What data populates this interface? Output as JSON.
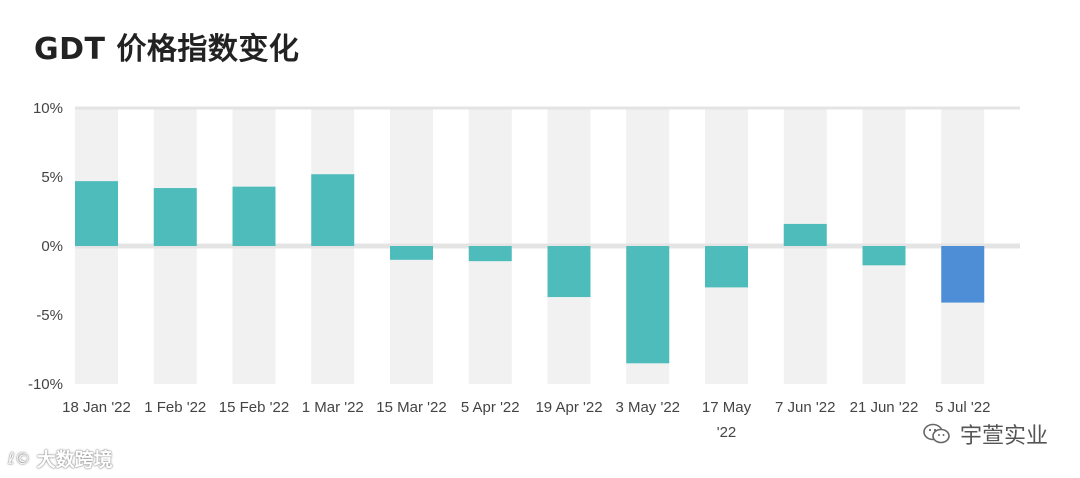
{
  "title": "GDT 价格指数变化",
  "chart_data": {
    "type": "bar",
    "title": "GDT 价格指数变化",
    "xlabel": "",
    "ylabel": "",
    "ylim": [
      -10,
      10
    ],
    "y_ticks": [
      10,
      5,
      0,
      -5,
      -10
    ],
    "y_tick_labels": [
      "10%",
      "5%",
      "0%",
      "-5%",
      "-10%"
    ],
    "categories": [
      "18 Jan '22",
      "1 Feb '22",
      "15 Feb '22",
      "1 Mar '22",
      "15 Mar '22",
      "5 Apr '22",
      "19 Apr '22",
      "3 May '22",
      "17 May '22",
      "7 Jun '22",
      "21 Jun '22",
      "5 Jul '22"
    ],
    "category_label_lines": [
      [
        "18 Jan '22"
      ],
      [
        "1 Feb '22"
      ],
      [
        "15 Feb '22"
      ],
      [
        "1 Mar '22"
      ],
      [
        "15 Mar '22"
      ],
      [
        "5 Apr '22"
      ],
      [
        "19 Apr '22"
      ],
      [
        "3 May '22"
      ],
      [
        "17 May",
        "'22"
      ],
      [
        "7 Jun '22"
      ],
      [
        "21 Jun '22"
      ],
      [
        "5 Jul '22"
      ]
    ],
    "values": [
      4.7,
      4.2,
      4.3,
      5.2,
      -1.0,
      -1.1,
      -3.7,
      -8.5,
      -3.0,
      1.6,
      -1.4,
      -4.1
    ],
    "highlight_index": 11,
    "grid": "alternating-bands",
    "colors": {
      "bar": "#4FBCBC",
      "highlight": "#4E8ED6",
      "band": "#F1F1F1",
      "zero_line": "#E4E4E4"
    }
  },
  "watermarks": {
    "left_logo": "ℓ©",
    "left_text": "大数跨境",
    "right_text": "宇萱实业"
  }
}
